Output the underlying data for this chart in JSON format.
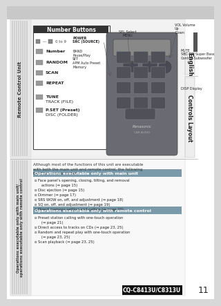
{
  "bg_color": "#d8d8d8",
  "page_bg": "#ffffff",
  "top_bar_color": "#c8c8c8",
  "title_model": "CQ-C8413U/C8313U",
  "page_number": "11",
  "english_label": "English",
  "controls_layout_label": "Controls Layout",
  "left_sidebar_top_text": "Remote Control Unit",
  "left_sidebar_bot_text": "Operations executable only with main unit/\noperations executable only with remote control",
  "section1_header": "Operations executable only with main unit",
  "section2_header": "Operations executable only with remote control",
  "intro_text": "Although most of the functions of this unit are executable\nwith both the main unit and remote control, the following\nfunctions are excluded.",
  "number_buttons_title": "Number Buttons",
  "section1_items": [
    "Face panel’s opening, closing, tilting, and removal\n   actions (⇒ page 15)",
    "Disc ejection (⇒ page 15)",
    "Dimmer (⇒ page 17)",
    "SRS WOW on, off, and adjustment (⇒ page 18)",
    "SQ on, off, and adjustment (⇒ page 19)",
    "Direct memory setting and calling (⇒ page 20)"
  ],
  "section2_items": [
    "Preset station calling with one-touch operation\n   (⇒ page 21)",
    "Direct access to tracks on CDs (⇒ page 23, 25)",
    "Random and repeat play with one-touch operation\n   (⇒ page 23, 25)",
    "Scan playback (⇒ page 23, 25)"
  ],
  "header_bg": "#7a9aaa",
  "header_text_color": "#ffffff",
  "sidebar_bg": "#e0e0e0",
  "sidebar_stripe_color": "#c0c0c0",
  "model_box_bg": "#111111",
  "model_box_text": "#ffffff",
  "remote_body_color": "#6a6a72",
  "remote_btn_color": "#505058",
  "nb_box_bg": "#ffffff",
  "nb_title_bg": "#333333",
  "english_bar_color": "#888888",
  "controls_bar_color": "#888888"
}
